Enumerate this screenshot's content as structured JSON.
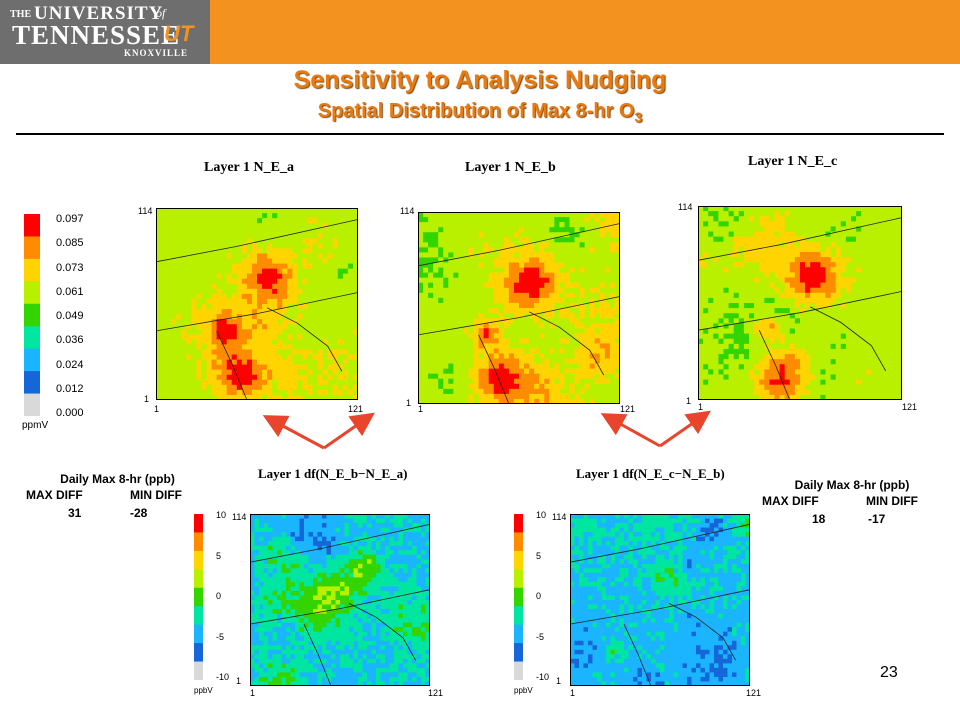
{
  "header": {
    "logo_line1_small": "THE",
    "logo_line1": "UNIVERSITY",
    "logo_of": "of",
    "logo_line2": "TENNESSEE",
    "logo_ut": "UT",
    "logo_line3": "KNOXVILLE"
  },
  "slide": {
    "title": "Sensitivity to Analysis Nudging",
    "subtitle_text": "Spatial Distribution of Max 8-hr O",
    "subtitle_sub": "3",
    "page_number": "23"
  },
  "colorbar_conc": {
    "ticks": [
      "0.097",
      "0.085",
      "0.073",
      "0.061",
      "0.049",
      "0.036",
      "0.024",
      "0.012",
      "0.000"
    ],
    "unit": "ppmV",
    "colors": [
      "#ff0000",
      "#ff8c00",
      "#ffd400",
      "#b8f000",
      "#33d400",
      "#00e6a0",
      "#1ab4ff",
      "#1466d9",
      "#d9d9d9"
    ]
  },
  "colorbar_diff": {
    "ticks": [
      "10",
      "5",
      "0",
      "-5",
      "-10"
    ],
    "unit": "ppbV",
    "colors": [
      "#ff0000",
      "#ff8c00",
      "#ffd400",
      "#b8f000",
      "#33d400",
      "#00e6a0",
      "#1ab4ff",
      "#1466d9",
      "#d9d9d9"
    ]
  },
  "maps": [
    {
      "label": "Layer 1  N_E_a",
      "y_top": "114",
      "y_bottom": "1",
      "x_left": "1",
      "x_right": "121"
    },
    {
      "label": "Layer 1  N_E_b",
      "y_top": "114",
      "y_bottom": "1",
      "x_left": "1",
      "x_right": "121"
    },
    {
      "label": "Layer 1  N_E_c",
      "y_top": "114",
      "y_bottom": "1",
      "x_left": "1",
      "x_right": "121"
    },
    {
      "label": "Layer 1  df(N_E_b−N_E_a)",
      "y_top": "114",
      "y_bottom": "1",
      "x_left": "1",
      "x_right": "121"
    },
    {
      "label": "Layer 1  df(N_E_c−N_E_b)",
      "y_top": "114",
      "y_bottom": "1",
      "x_left": "1",
      "x_right": "121"
    }
  ],
  "stats": [
    {
      "title": "Daily Max 8-hr (ppb)",
      "max_label": "MAX DIFF",
      "min_label": "MIN DIFF",
      "max_value": "31",
      "min_value": "-28"
    },
    {
      "title": "Daily Max 8-hr (ppb)",
      "max_label": "MAX DIFF",
      "min_label": "MIN DIFF",
      "max_value": "18",
      "min_value": "-17"
    }
  ],
  "accent_colors": {
    "banner": "#f3921e",
    "title": "#e87a10",
    "arrow": "#e8452c"
  }
}
